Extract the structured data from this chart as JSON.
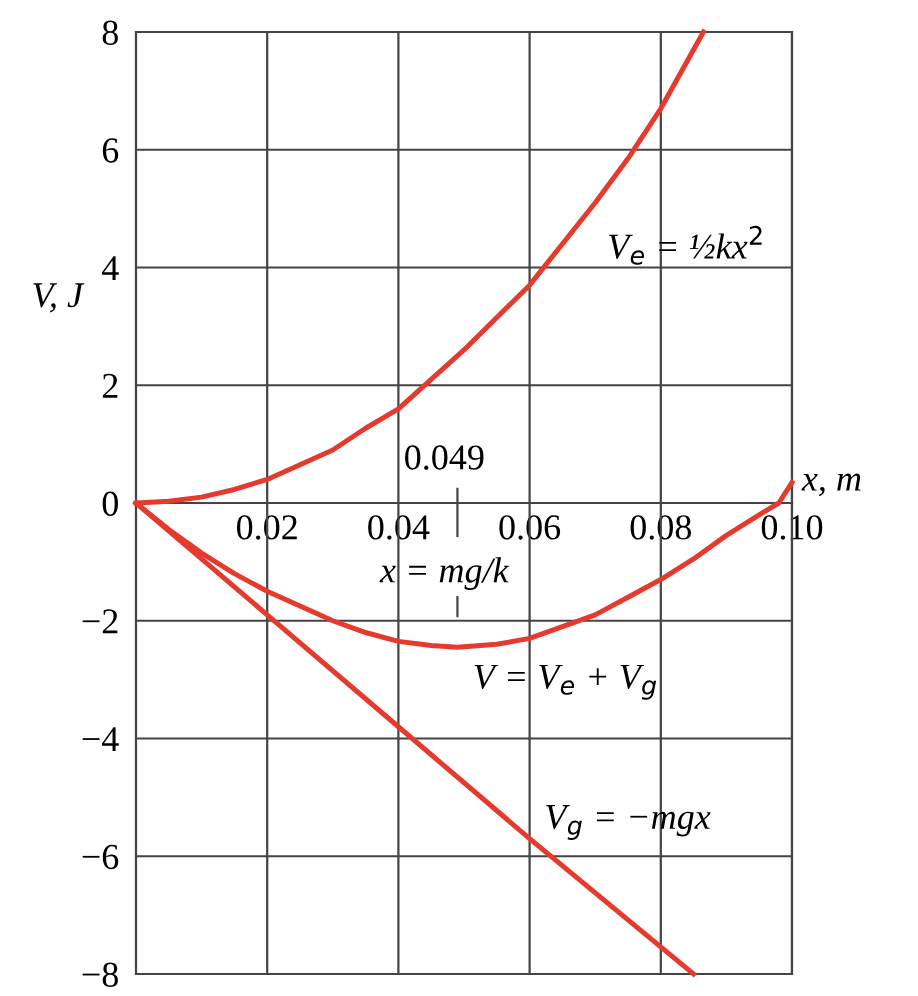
{
  "chart_data": {
    "type": "line",
    "xlabel": "x, m",
    "ylabel": "V, J",
    "xlim": [
      0,
      0.1
    ],
    "ylim": [
      -8,
      8
    ],
    "xticks": [
      0.02,
      0.04,
      0.06,
      0.08,
      {
        "value": 0.1,
        "label": "0.10"
      }
    ],
    "yticks": [
      -8,
      -6,
      -4,
      -2,
      0,
      2,
      4,
      6,
      8
    ],
    "grid": true,
    "legend": false,
    "marker": "none",
    "line_style": "solid",
    "series": [
      {
        "name": "V$_{e}$ = ½kx$^{2}$",
        "color": "#e53a2e",
        "x": [
          0,
          0.005,
          0.01,
          0.015,
          0.02,
          0.025,
          0.03,
          0.035,
          0.04,
          0.045,
          0.05,
          0.055,
          0.06,
          0.065,
          0.07,
          0.075,
          0.08,
          0.0865
        ],
        "values": [
          0,
          0.03,
          0.1,
          0.23,
          0.4,
          0.65,
          0.9,
          1.27,
          1.6,
          2.1,
          2.6,
          3.15,
          3.7,
          4.4,
          5.1,
          5.85,
          6.7,
          8
        ]
      },
      {
        "name": "V = V$_{e}$ + V$_{g}$",
        "color": "#e53a2e",
        "x": [
          0,
          0.005,
          0.01,
          0.015,
          0.02,
          0.025,
          0.03,
          0.035,
          0.04,
          0.045,
          0.049,
          0.055,
          0.06,
          0.065,
          0.07,
          0.075,
          0.08,
          0.085,
          0.09,
          0.095,
          0.098,
          0.1
        ],
        "values": [
          0,
          -0.45,
          -0.85,
          -1.2,
          -1.5,
          -1.75,
          -2.0,
          -2.2,
          -2.35,
          -2.42,
          -2.45,
          -2.4,
          -2.3,
          -2.1,
          -1.9,
          -1.6,
          -1.3,
          -0.95,
          -0.55,
          -0.2,
          0,
          0.35
        ]
      },
      {
        "name": "V$_{g}$ = −mgx",
        "color": "#e53a2e",
        "x": [
          0,
          0.02,
          0.04,
          0.06,
          0.085
        ],
        "values": [
          0,
          -1.9,
          -3.8,
          -5.7,
          -8
        ]
      }
    ],
    "annotations": [
      "0.049",
      "x = mg/k"
    ]
  }
}
